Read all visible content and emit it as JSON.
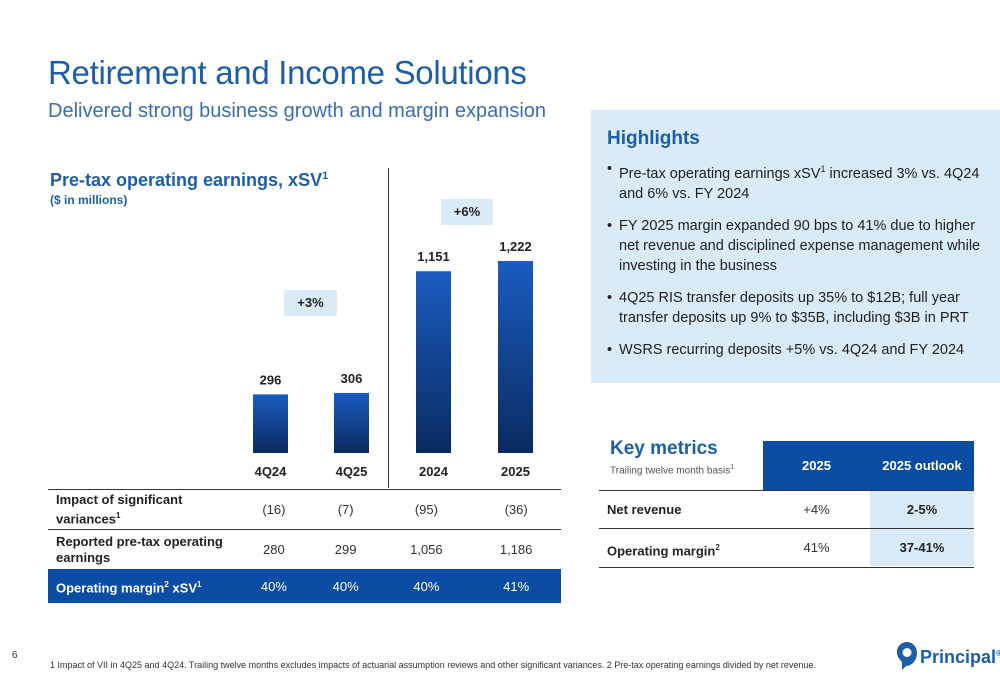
{
  "header": {
    "title": "Retirement and Income Solutions",
    "subtitle": "Delivered strong business growth and margin expansion"
  },
  "chart_data": {
    "type": "bar",
    "title": "Pre-tax operating earnings, xSV",
    "title_superscript": "1",
    "subtitle": "($ in millions)",
    "categories": [
      "4Q24",
      "4Q25",
      "2024",
      "2025"
    ],
    "values": [
      296,
      306,
      1151,
      1222
    ],
    "value_labels": [
      "296",
      "306",
      "1,151",
      "1,222"
    ],
    "growth_annotations": [
      "+3%",
      "+6%"
    ],
    "color": "#0b3d8c",
    "ylim": [
      0,
      1400
    ]
  },
  "data_table": {
    "rows": [
      {
        "label": "Impact of significant variances",
        "sup": "1",
        "values": [
          "(16)",
          "(7)",
          "(95)",
          "(36)"
        ]
      },
      {
        "label": "Reported pre-tax operating earnings",
        "sup": "",
        "values": [
          "280",
          "299",
          "1,056",
          "1,186"
        ]
      },
      {
        "label_a": "Operating margin",
        "sup_a": "2",
        "label_b": " xSV",
        "sup_b": "1",
        "values": [
          "40%",
          "40%",
          "40%",
          "41%"
        ]
      }
    ]
  },
  "highlights": {
    "title": "Highlights",
    "items": [
      {
        "a": "Pre-tax operating earnings xSV",
        "sup": "1",
        "b": " increased 3% vs. 4Q24 and 6% vs. FY 2024"
      },
      {
        "a": "FY 2025 margin expanded 90 bps to 41% due to higher net revenue and disciplined expense management while investing in the business",
        "sup": "",
        "b": ""
      },
      {
        "a": "4Q25 RIS transfer deposits up 35% to $12B; full year transfer deposits up 9% to $35B, including $3B in PRT",
        "sup": "",
        "b": ""
      },
      {
        "a": "WSRS recurring deposits +5% vs. 4Q24 and FY 2024",
        "sup": "",
        "b": ""
      }
    ]
  },
  "key_metrics": {
    "title": "Key metrics",
    "subtitle": "Trailing twelve month basis",
    "subtitle_sup": "1",
    "columns": [
      "2025",
      "2025 outlook"
    ],
    "rows": [
      {
        "label": "Net revenue",
        "sup": "",
        "value": "+4%",
        "outlook": "2-5%"
      },
      {
        "label": "Operating margin",
        "sup": "2",
        "value": "41%",
        "outlook": "37-41%"
      }
    ]
  },
  "footer": {
    "page_number": "6",
    "footnote": "1 Impact of VII in 4Q25 and 4Q24. Trailing twelve months excludes impacts of actuarial assumption reviews and other significant variances. 2 Pre-tax operating earnings divided by net revenue.",
    "logo_text": "Principal",
    "logo_sup": "®"
  }
}
